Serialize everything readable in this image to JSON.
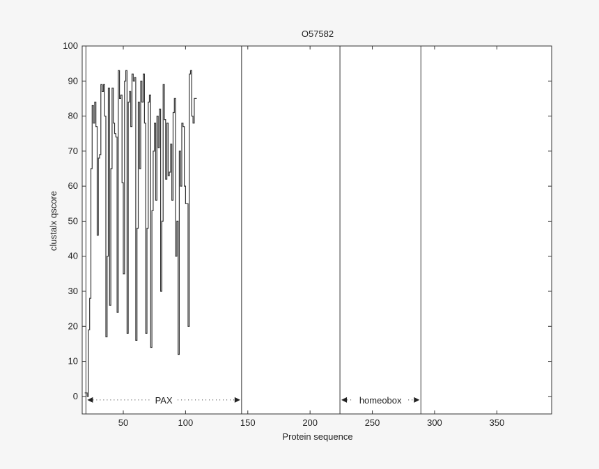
{
  "chart_data": {
    "type": "line",
    "title": "O57582",
    "xlabel": "Protein sequence",
    "ylabel": "clustalx qscore",
    "xlim": [
      17,
      394
    ],
    "ylim": [
      -5,
      100
    ],
    "xticks": [
      50,
      100,
      150,
      200,
      250,
      300,
      350
    ],
    "yticks": [
      0,
      10,
      20,
      30,
      40,
      50,
      60,
      70,
      80,
      90,
      100
    ],
    "grid": false,
    "line_color": "#333333",
    "boundaries": [
      20,
      145,
      224,
      289
    ],
    "regions": [
      {
        "label": "PAX",
        "start": 20,
        "end": 145
      },
      {
        "label": "homeobox",
        "start": 224,
        "end": 289
      }
    ],
    "series": [
      {
        "x_start": 19,
        "values": [
          1,
          1,
          0,
          19,
          28,
          65,
          83,
          78,
          84,
          77,
          46,
          68,
          69,
          89,
          87,
          89,
          80,
          17,
          40,
          88,
          26,
          65,
          88,
          78,
          75,
          74,
          24,
          93,
          85,
          86,
          61,
          35,
          90,
          93,
          18,
          84,
          87,
          77,
          92,
          90,
          91,
          16,
          48,
          84,
          65,
          90,
          84,
          92,
          78,
          18,
          48,
          84,
          86,
          14,
          53,
          70,
          78,
          56,
          80,
          71,
          82,
          30,
          50,
          89,
          79,
          62,
          78,
          63,
          64,
          72,
          56,
          81,
          85,
          40,
          50,
          12,
          70,
          60,
          78,
          77,
          60,
          55,
          55,
          20,
          92,
          93,
          80,
          78,
          85,
          85
        ]
      }
    ]
  }
}
